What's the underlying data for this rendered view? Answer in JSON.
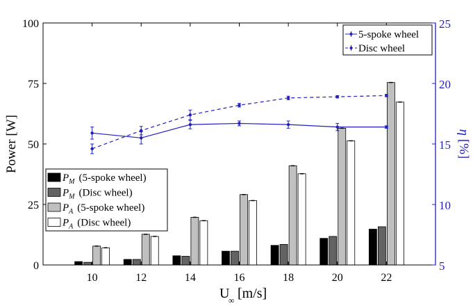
{
  "chart_data": {
    "type": "bar",
    "xlabel": "U∞ [m/s]",
    "xlabel_main": "U",
    "xlabel_sub": "∞",
    "xlabel_unit": "[m/s]",
    "ylabel": "Power [W]",
    "y2label": "η [%]",
    "y2label_symbol": "η",
    "y2label_unit": "[%]",
    "xlim": [
      8,
      24
    ],
    "ylim": [
      0,
      100
    ],
    "y2lim": [
      5,
      25
    ],
    "x": [
      10,
      12,
      14,
      16,
      18,
      20,
      22
    ],
    "xticks": [
      "10",
      "12",
      "14",
      "16",
      "18",
      "20",
      "22"
    ],
    "yticks": [
      "0",
      "25",
      "50",
      "75",
      "100"
    ],
    "y2ticks": [
      "5",
      "10",
      "15",
      "20",
      "25"
    ],
    "grid": false,
    "bar_series": [
      {
        "name": "P_M (5-spoke wheel)",
        "sym": "P",
        "sub": "M",
        "label": "(5-spoke wheel)",
        "color": "#000000",
        "values": [
          1.4,
          2.3,
          3.8,
          5.7,
          8.1,
          11.0,
          14.8
        ]
      },
      {
        "name": "P_M (Disc wheel)",
        "sym": "P",
        "sub": "M",
        "label": "(Disc wheel)",
        "color": "#636363",
        "values": [
          1.1,
          2.3,
          3.6,
          5.7,
          8.5,
          11.8,
          15.8
        ]
      },
      {
        "name": "P_A (5-spoke wheel)",
        "sym": "P",
        "sub": "A",
        "label": "(5-spoke wheel)",
        "color": "#c0c0c0",
        "values": [
          7.8,
          12.7,
          19.7,
          29.1,
          41.0,
          56.5,
          75.4
        ]
      },
      {
        "name": "P_A (Disc wheel)",
        "sym": "P",
        "sub": "A",
        "label": "(Disc wheel)",
        "color": "#ffffff",
        "values": [
          7.1,
          11.8,
          18.3,
          26.6,
          37.7,
          51.3,
          67.3
        ]
      }
    ],
    "line_series": [
      {
        "name": "5-spoke wheel",
        "style": "solid",
        "color": "#1f1fbf",
        "values": [
          15.9,
          15.5,
          16.6,
          16.7,
          16.6,
          16.4,
          16.4
        ],
        "errors": [
          0.5,
          0.5,
          0.35,
          0.2,
          0.3,
          0.3,
          0.1
        ]
      },
      {
        "name": "Disc wheel",
        "style": "dashed",
        "color": "#1f1fbf",
        "values": [
          14.6,
          16.1,
          17.4,
          18.2,
          18.8,
          18.9,
          19.0
        ],
        "errors": [
          0.4,
          0.35,
          0.4,
          0.15,
          0.15,
          0.1,
          0.1
        ]
      }
    ],
    "bar_legend_placement": "lower-left",
    "line_legend_placement": "top-right"
  }
}
